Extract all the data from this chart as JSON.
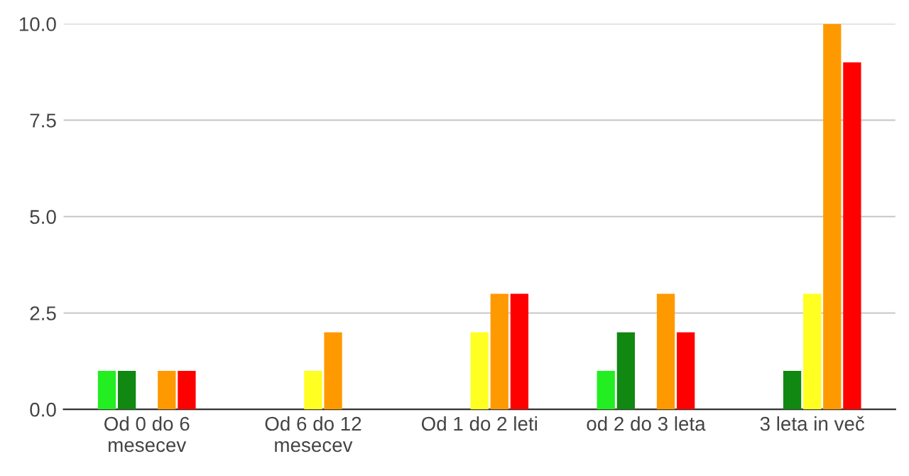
{
  "chart_data": {
    "type": "bar",
    "categories": [
      "Od 0 do 6\nmesecev",
      "Od 6 do 12\nmesecev",
      "Od 1 do 2 leti",
      "od 2 do 3 leta",
      "3 leta in več"
    ],
    "series": [
      {
        "color": "#22ee22",
        "values": [
          1,
          null,
          null,
          1,
          null
        ]
      },
      {
        "color": "#118811",
        "values": [
          1,
          null,
          null,
          2,
          1
        ]
      },
      {
        "color": "#ffff22",
        "values": [
          null,
          1,
          2,
          null,
          3
        ]
      },
      {
        "color": "#ff9900",
        "values": [
          1,
          2,
          3,
          3,
          10
        ]
      },
      {
        "color": "#ff0000",
        "values": [
          1,
          null,
          3,
          2,
          9
        ]
      }
    ],
    "ylim": [
      0,
      10
    ],
    "yticks": [
      {
        "value": 0,
        "label": "0.0"
      },
      {
        "value": 2.5,
        "label": "2.5"
      },
      {
        "value": 5,
        "label": "5.0"
      },
      {
        "value": 7.5,
        "label": "7.5"
      },
      {
        "value": 10,
        "label": "10.0"
      }
    ],
    "grid": "y"
  }
}
